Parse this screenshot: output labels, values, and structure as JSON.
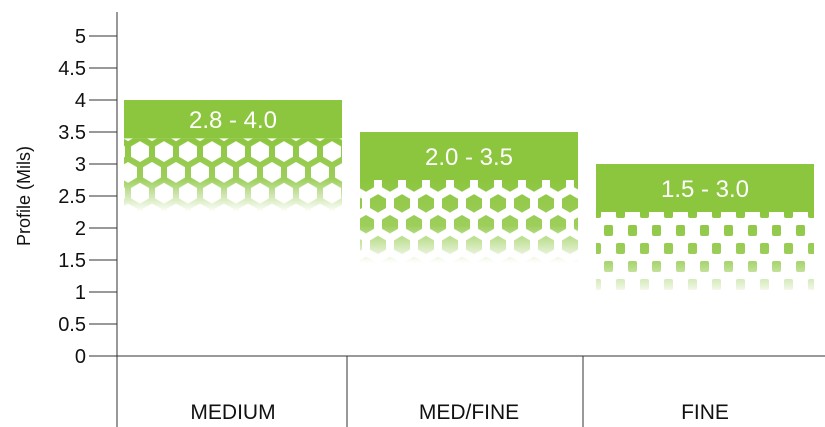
{
  "chart_data": {
    "type": "bar",
    "style": "floating range bars with hexagon pattern fading downward",
    "ylabel": "Profile (Mils)",
    "xlabel": "",
    "ylim": [
      0,
      5
    ],
    "yticks": [
      "0",
      "0.5",
      "1",
      "1.5",
      "2",
      "2.5",
      "3",
      "3.5",
      "4",
      "4.5",
      "5"
    ],
    "categories": [
      "MEDIUM",
      "MED/FINE",
      "FINE"
    ],
    "series": [
      {
        "values": [
          {
            "low": 2.8,
            "high": 4.0,
            "label": "2.8 - 4.0"
          },
          {
            "low": 2.0,
            "high": 3.5,
            "label": "2.0 - 3.5"
          },
          {
            "low": 1.5,
            "high": 3.0,
            "label": "1.5 - 3.0"
          }
        ]
      }
    ],
    "grid": false,
    "legend": "none",
    "colors": {
      "bar": "#8cc63f",
      "pattern": "#8cc63f",
      "axis": "#333333"
    }
  }
}
